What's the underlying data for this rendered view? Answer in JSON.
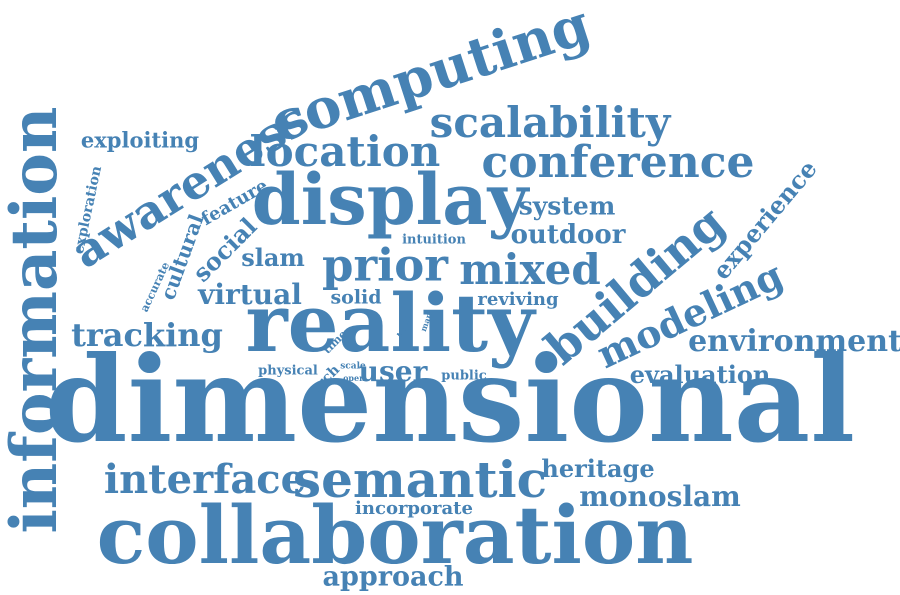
{
  "word_cloud": {
    "color": "#4682b4",
    "words": [
      {
        "text": "dimensional"
      },
      {
        "text": "information"
      },
      {
        "text": "collaboration"
      },
      {
        "text": "reality"
      },
      {
        "text": "display"
      },
      {
        "text": "computing"
      },
      {
        "text": "awareness"
      },
      {
        "text": "building"
      },
      {
        "text": "semantic"
      },
      {
        "text": "conference"
      },
      {
        "text": "scalability"
      },
      {
        "text": "location"
      },
      {
        "text": "prior"
      },
      {
        "text": "mixed"
      },
      {
        "text": "modeling"
      },
      {
        "text": "interface"
      },
      {
        "text": "tracking"
      },
      {
        "text": "environment"
      },
      {
        "text": "approach"
      },
      {
        "text": "monoslam"
      },
      {
        "text": "outdoor"
      },
      {
        "text": "virtual"
      },
      {
        "text": "system"
      },
      {
        "text": "experience"
      },
      {
        "text": "evaluation"
      },
      {
        "text": "user"
      },
      {
        "text": "exploiting"
      },
      {
        "text": "heritage"
      },
      {
        "text": "social"
      },
      {
        "text": "slam"
      },
      {
        "text": "incorporate"
      },
      {
        "text": "cultural"
      },
      {
        "text": "feature"
      },
      {
        "text": "solid"
      },
      {
        "text": "reviving"
      },
      {
        "text": "exploration"
      },
      {
        "text": "intuition"
      },
      {
        "text": "physical"
      },
      {
        "text": "public"
      },
      {
        "text": "arch"
      },
      {
        "text": "accurate"
      },
      {
        "text": "time"
      },
      {
        "text": "tour"
      },
      {
        "text": "scale"
      },
      {
        "text": "open"
      },
      {
        "text": "map"
      }
    ]
  }
}
